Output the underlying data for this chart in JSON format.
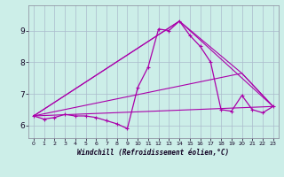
{
  "xlabel": "Windchill (Refroidissement éolien,°C)",
  "background_color": "#cceee8",
  "grid_color": "#aabbcc",
  "line_color": "#aa00aa",
  "xlim": [
    -0.5,
    23.5
  ],
  "ylim": [
    5.6,
    9.8
  ],
  "yticks": [
    6,
    7,
    8,
    9
  ],
  "xticks": [
    0,
    1,
    2,
    3,
    4,
    5,
    6,
    7,
    8,
    9,
    10,
    11,
    12,
    13,
    14,
    15,
    16,
    17,
    18,
    19,
    20,
    21,
    22,
    23
  ],
  "line1_x": [
    0,
    1,
    2,
    3,
    4,
    5,
    6,
    7,
    8,
    9,
    10,
    11,
    12,
    13,
    14,
    15,
    16,
    17,
    18,
    19,
    20,
    21,
    22,
    23
  ],
  "line1_y": [
    6.3,
    6.2,
    6.25,
    6.35,
    6.3,
    6.3,
    6.25,
    6.15,
    6.05,
    5.9,
    7.2,
    7.85,
    9.05,
    9.0,
    9.3,
    8.85,
    8.5,
    8.0,
    6.5,
    6.45,
    6.95,
    6.5,
    6.4,
    6.6
  ],
  "line_trend1_x": [
    0,
    23
  ],
  "line_trend1_y": [
    6.3,
    6.6
  ],
  "line_trend2_x": [
    0,
    14,
    23
  ],
  "line_trend2_y": [
    6.3,
    9.3,
    6.6
  ],
  "line_trend3_x": [
    0,
    20,
    23
  ],
  "line_trend3_y": [
    6.3,
    7.65,
    6.6
  ],
  "line_trend4_x": [
    0,
    14,
    20,
    23
  ],
  "line_trend4_y": [
    6.3,
    9.3,
    7.65,
    6.6
  ]
}
